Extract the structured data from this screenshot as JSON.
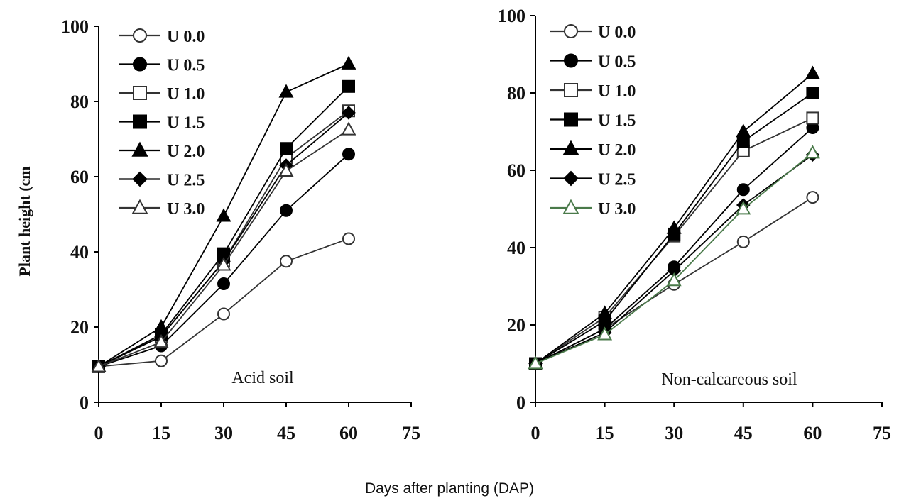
{
  "shared_xlabel": "Days after planting (DAP)",
  "chart_data": [
    {
      "type": "line",
      "panel_label": "Acid soil",
      "ylabel": "Plant height (cm",
      "xlabel": "",
      "xlim": [
        0,
        75
      ],
      "ylim": [
        0,
        100
      ],
      "x_ticks": [
        0,
        15,
        30,
        45,
        60,
        75
      ],
      "y_ticks": [
        0,
        20,
        40,
        60,
        80,
        100
      ],
      "x": [
        0,
        15,
        30,
        45,
        60
      ],
      "grid": false,
      "legend_position": "top-left",
      "series": [
        {
          "name": "U 0.0",
          "marker": "circle-open",
          "color": "#333333",
          "values": [
            9.5,
            11,
            23.5,
            37.5,
            43.5
          ]
        },
        {
          "name": "U 0.5",
          "marker": "circle-filled",
          "color": "#000000",
          "values": [
            9.5,
            15,
            31.5,
            51,
            66
          ]
        },
        {
          "name": "U 1.0",
          "marker": "square-open",
          "color": "#333333",
          "values": [
            9.5,
            17.5,
            37.5,
            65,
            77.5
          ]
        },
        {
          "name": "U 1.5",
          "marker": "square-filled",
          "color": "#000000",
          "values": [
            9.5,
            18,
            39.5,
            67.5,
            84
          ]
        },
        {
          "name": "U 2.0",
          "marker": "triangle-filled",
          "color": "#000000",
          "values": [
            9.5,
            20,
            49.5,
            82.5,
            90
          ]
        },
        {
          "name": "U 2.5",
          "marker": "diamond-filled",
          "color": "#000000",
          "values": [
            9.5,
            17.5,
            37.5,
            63,
            77
          ]
        },
        {
          "name": "U 3.0",
          "marker": "triangle-open",
          "color": "#333333",
          "values": [
            9.5,
            16,
            36.5,
            61.5,
            72.5
          ]
        }
      ]
    },
    {
      "type": "line",
      "panel_label": "Non-calcareous soil",
      "ylabel": "",
      "xlabel": "",
      "xlim": [
        0,
        75
      ],
      "ylim": [
        0,
        100
      ],
      "x_ticks": [
        0,
        15,
        30,
        45,
        60,
        75
      ],
      "y_ticks": [
        0,
        20,
        40,
        60,
        80,
        100
      ],
      "x": [
        0,
        15,
        30,
        45,
        60
      ],
      "grid": false,
      "legend_position": "top-left",
      "series": [
        {
          "name": "U 0.0",
          "marker": "circle-open",
          "color": "#333333",
          "values": [
            10,
            19,
            30.5,
            41.5,
            53
          ]
        },
        {
          "name": "U 0.5",
          "marker": "circle-filled",
          "color": "#000000",
          "values": [
            10,
            19,
            35,
            55,
            71
          ]
        },
        {
          "name": "U 1.0",
          "marker": "square-open",
          "color": "#333333",
          "values": [
            10,
            22,
            43,
            65,
            73.5
          ]
        },
        {
          "name": "U 1.5",
          "marker": "square-filled",
          "color": "#000000",
          "values": [
            10,
            21,
            43.5,
            67.5,
            80
          ]
        },
        {
          "name": "U 2.0",
          "marker": "triangle-filled",
          "color": "#000000",
          "values": [
            10,
            23,
            45,
            70,
            85
          ]
        },
        {
          "name": "U 2.5",
          "marker": "diamond-filled",
          "color": "#000000",
          "values": [
            10,
            18,
            34,
            51,
            64
          ]
        },
        {
          "name": "U 3.0",
          "marker": "triangle-open",
          "color": "#4a7a4a",
          "values": [
            10,
            17.5,
            31.5,
            50,
            64.5
          ]
        }
      ]
    }
  ]
}
